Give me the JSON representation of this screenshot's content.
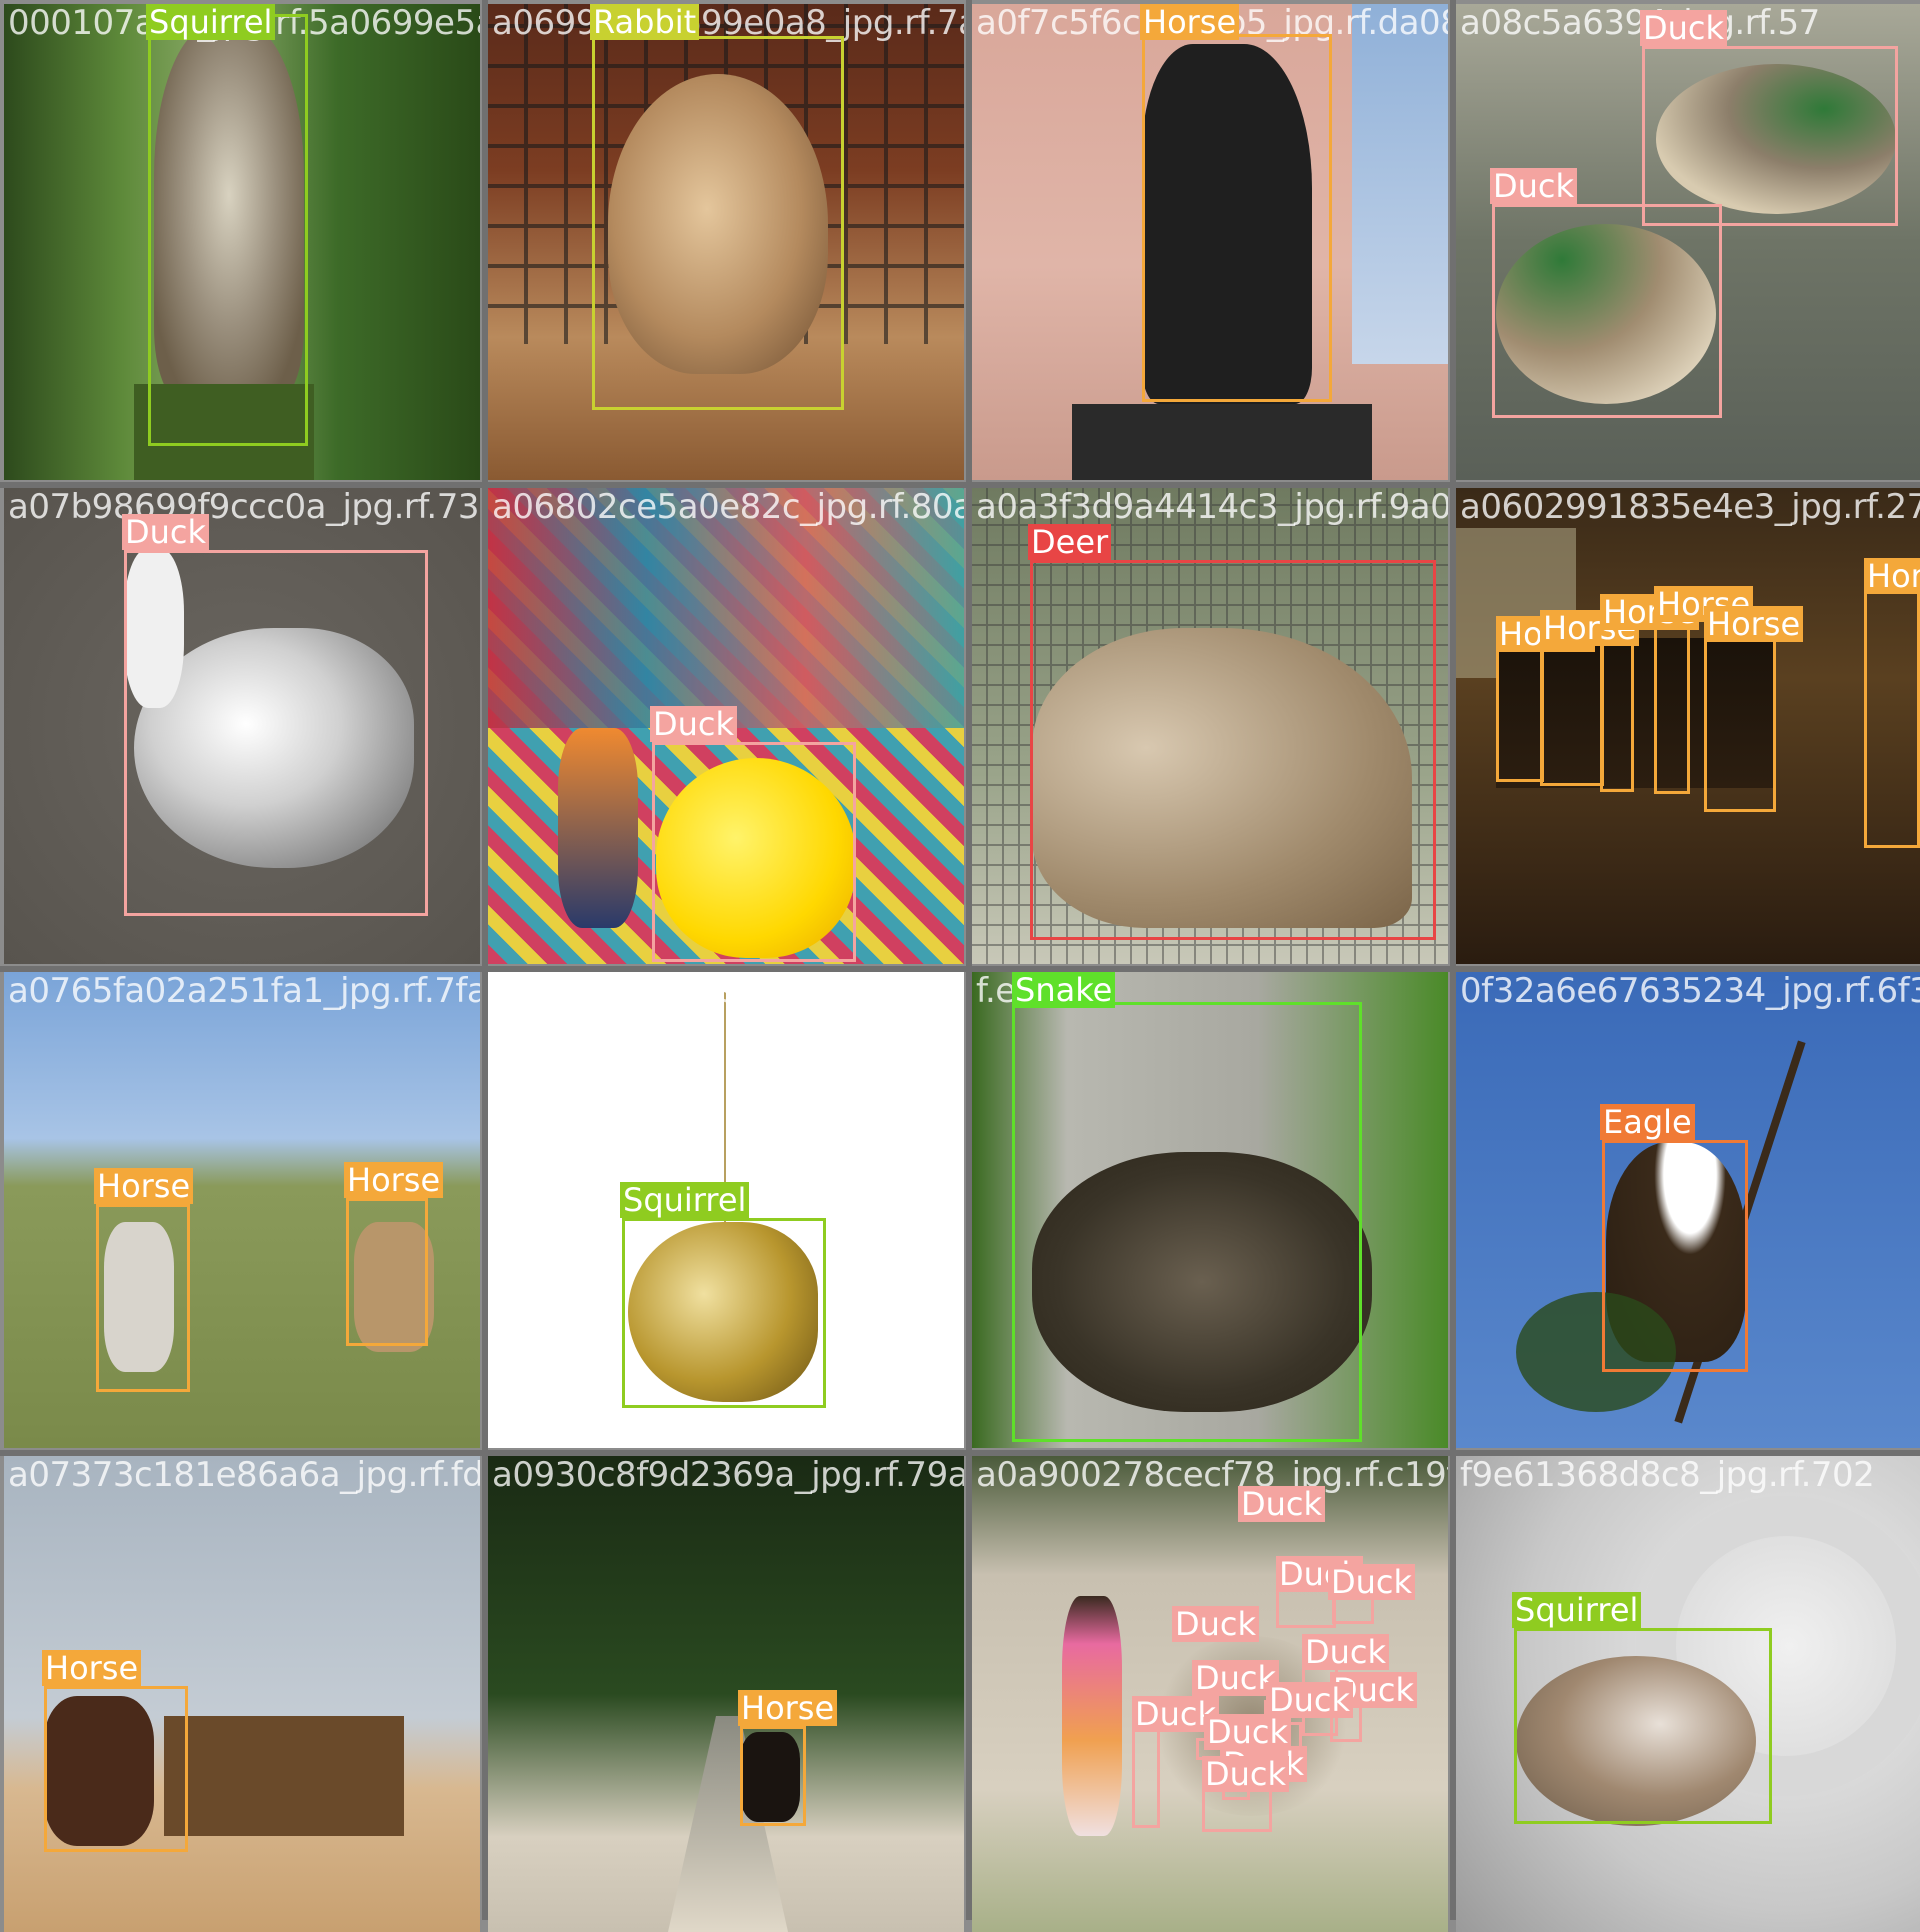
{
  "colors": {
    "squirrel": "#8fcc20",
    "rabbit": "#c8d130",
    "horse": "#f4a83a",
    "duck": "#f4a4a0",
    "deer": "#e84545",
    "snake": "#5fe02a",
    "eagle": "#f07a35"
  },
  "tiles": [
    {
      "filename": "000107a7d_jpg.rf.5a0699e5a1699e0a8",
      "scene": "squirrel-on-post",
      "detections": [
        {
          "label": "Squirrel",
          "color": "squirrel"
        }
      ]
    },
    {
      "filename": "a0699e5a1699e0a8_jpg.rf.7a0f7c5f6c99",
      "scene": "rabbit-indoors",
      "detections": [
        {
          "label": "Rabbit",
          "color": "rabbit"
        }
      ]
    },
    {
      "filename": "a0f7c5f6c9963b5_jpg.rf.da08c5a63",
      "scene": "horse-statue-building",
      "detections": [
        {
          "label": "Horse",
          "color": "horse"
        }
      ]
    },
    {
      "filename": "a08c5a6394_jpg.rf.57",
      "scene": "mallard-ducks-water",
      "detections": [
        {
          "label": "Duck",
          "color": "duck"
        },
        {
          "label": "Duck",
          "color": "duck"
        }
      ]
    },
    {
      "filename": "a07b98699f9ccc0a_jpg.rf.73a6802ce5a0e82c",
      "scene": "goose-on-gravel",
      "detections": [
        {
          "label": "Duck",
          "color": "duck"
        }
      ]
    },
    {
      "filename": "a06802ce5a0e82c_jpg.rf.80a0a3f3d9a4414c3",
      "scene": "rubber-duck-anaglyph",
      "detections": [
        {
          "label": "Duck",
          "color": "duck"
        }
      ]
    },
    {
      "filename": "a0a3f3d9a4414c3_jpg.rf.9a0602991835e4e3",
      "scene": "deer-behind-fence",
      "detections": [
        {
          "label": "Deer",
          "color": "deer"
        }
      ]
    },
    {
      "filename": "a0602991835e4e3_jpg.rf.27",
      "scene": "horses-night-street",
      "detections": [
        {
          "label": "Horse",
          "color": "horse"
        },
        {
          "label": "Horse",
          "color": "horse"
        },
        {
          "label": "Horse",
          "color": "horse"
        },
        {
          "label": "Horse",
          "color": "horse"
        },
        {
          "label": "Horse",
          "color": "horse"
        },
        {
          "label": "Horse",
          "color": "horse"
        }
      ]
    },
    {
      "filename": "a0765fa02a251fa1_jpg.rf.7fa0e9e30c29990db0b",
      "scene": "horses-in-field",
      "detections": [
        {
          "label": "Horse",
          "color": "horse"
        },
        {
          "label": "Horse",
          "color": "horse"
        }
      ]
    },
    {
      "filename": "a0e9e30c29990db0b_jpg.rf.3",
      "scene": "squirrel-ornament",
      "detections": [
        {
          "label": "Squirrel",
          "color": "squirrel"
        }
      ]
    },
    {
      "filename": "f.e9",
      "scene": "rattlesnake",
      "detections": [
        {
          "label": "Snake",
          "color": "snake"
        }
      ]
    },
    {
      "filename": "0f32a6e67635234_jpg.rf.6f3",
      "scene": "bald-eagle-tree",
      "detections": [
        {
          "label": "Eagle",
          "color": "eagle"
        }
      ]
    },
    {
      "filename": "a07373c181e86a6a_jpg.rf.fda0930c8f9d2369a",
      "scene": "horse-cart-beach",
      "detections": [
        {
          "label": "Horse",
          "color": "horse"
        }
      ]
    },
    {
      "filename": "a0930c8f9d2369a_jpg.rf.79a0a900278cecf78",
      "scene": "forest-path-horse",
      "detections": [
        {
          "label": "Horse",
          "color": "horse"
        }
      ]
    },
    {
      "filename": "a0a900278cecf78_jpg.rf.c19f9e61368d8c8",
      "scene": "girl-with-ducks",
      "detections": [
        {
          "label": "Duck",
          "color": "duck"
        },
        {
          "label": "Duck",
          "color": "duck"
        },
        {
          "label": "Duck",
          "color": "duck"
        },
        {
          "label": "Duck",
          "color": "duck"
        },
        {
          "label": "Duck",
          "color": "duck"
        },
        {
          "label": "Duck",
          "color": "duck"
        },
        {
          "label": "Duck",
          "color": "duck"
        },
        {
          "label": "Duck",
          "color": "duck"
        },
        {
          "label": "Duck",
          "color": "duck"
        },
        {
          "label": "Duck",
          "color": "duck"
        },
        {
          "label": "Duck",
          "color": "duck"
        },
        {
          "label": "Duck",
          "color": "duck"
        }
      ]
    },
    {
      "filename": "f9e61368d8c8_jpg.rf.702",
      "scene": "squirrel-under-stone",
      "detections": [
        {
          "label": "Squirrel",
          "color": "squirrel"
        }
      ]
    }
  ]
}
